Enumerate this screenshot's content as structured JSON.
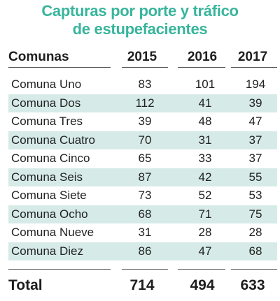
{
  "title_line1": "Capturas por porte y tráfico",
  "title_line2": "de estupefacientes",
  "colors": {
    "title": "#38b59c",
    "row_shade": "#d6ebe7",
    "rule": "#555555"
  },
  "headers": {
    "label": "Comunas",
    "y2015": "2015",
    "y2016": "2016",
    "y2017": "2017"
  },
  "rows": [
    {
      "name": "Comuna Uno",
      "v2015": "83",
      "v2016": "101",
      "v2017": "194"
    },
    {
      "name": "Comuna Dos",
      "v2015": "112",
      "v2016": "41",
      "v2017": "39"
    },
    {
      "name": "Comuna Tres",
      "v2015": "39",
      "v2016": "48",
      "v2017": "47"
    },
    {
      "name": "Comuna Cuatro",
      "v2015": "70",
      "v2016": "31",
      "v2017": "37"
    },
    {
      "name": "Comuna Cinco",
      "v2015": "65",
      "v2016": "33",
      "v2017": "37"
    },
    {
      "name": "Comuna Seis",
      "v2015": "87",
      "v2016": "42",
      "v2017": "55"
    },
    {
      "name": "Comuna Siete",
      "v2015": "73",
      "v2016": "52",
      "v2017": "53"
    },
    {
      "name": "Comuna Ocho",
      "v2015": "68",
      "v2016": "71",
      "v2017": "75"
    },
    {
      "name": "Comuna Nueve",
      "v2015": "31",
      "v2016": "28",
      "v2017": "28"
    },
    {
      "name": "Comuna Diez",
      "v2015": "86",
      "v2016": "47",
      "v2017": "68"
    }
  ],
  "total": {
    "label": "Total",
    "v2015": "714",
    "v2016": "494",
    "v2017": "633"
  }
}
